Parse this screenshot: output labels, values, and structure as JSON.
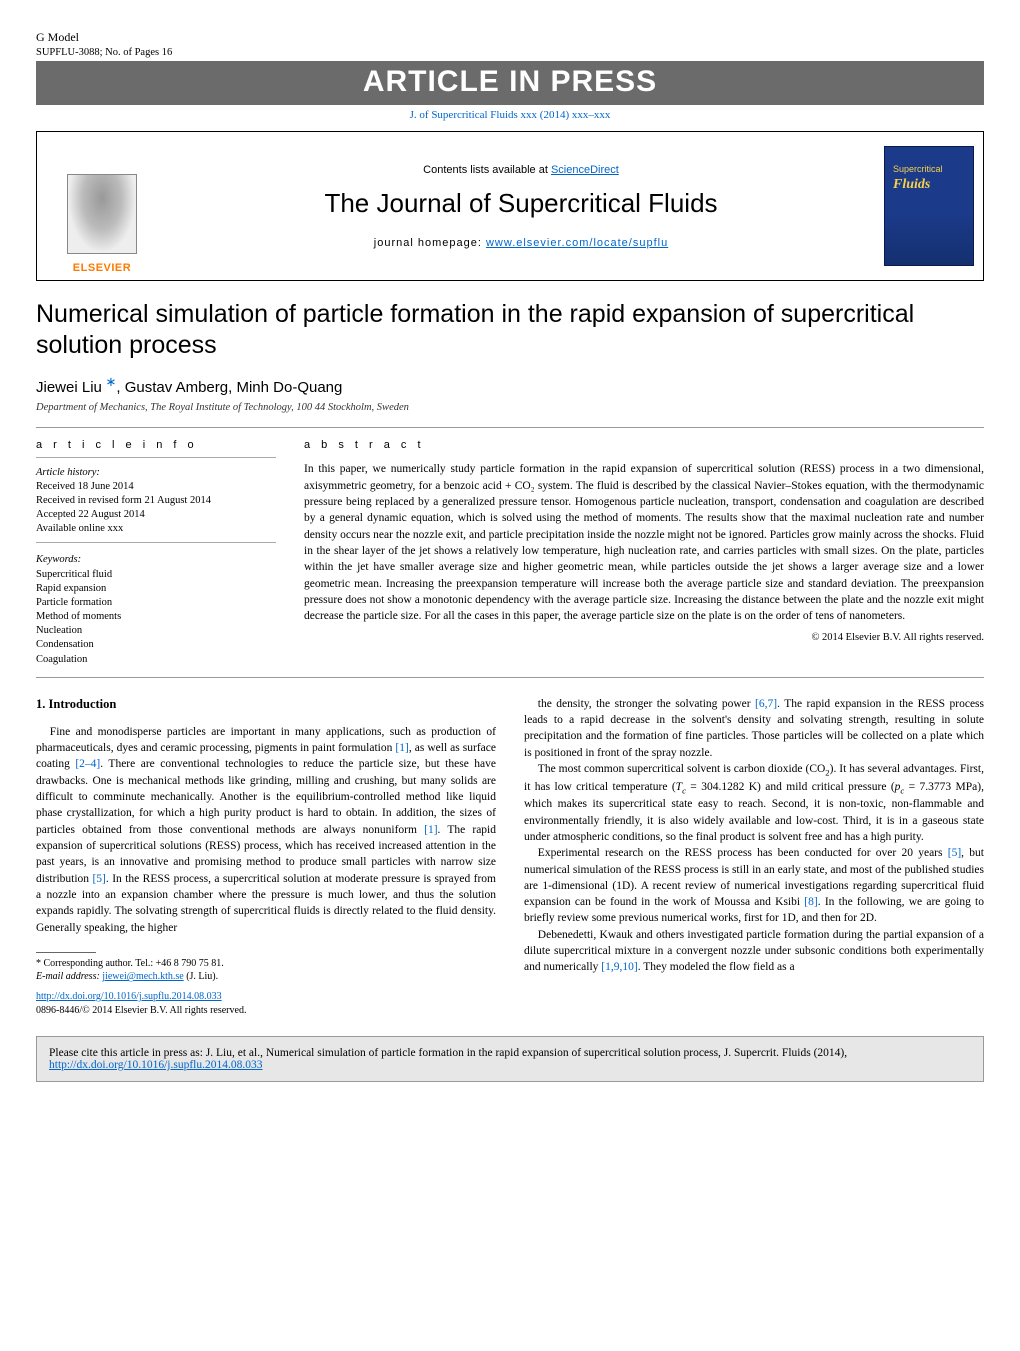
{
  "gmodel": {
    "label": "G Model",
    "ref": "SUPFLU-3088;   No. of Pages 16"
  },
  "aip_banner": "ARTICLE IN PRESS",
  "top_doi_link": "J. of Supercritical Fluids xxx (2014) xxx–xxx",
  "jheader": {
    "contents_prefix": "Contents lists available at ",
    "contents_link": "ScienceDirect",
    "journal_title": "The Journal of Supercritical Fluids",
    "homepage_label": "journal homepage: ",
    "homepage_url": "www.elsevier.com/locate/supflu",
    "elsevier": "ELSEVIER",
    "cover_line1": "Supercritical",
    "cover_line2": "Fluids"
  },
  "article": {
    "title": "Numerical simulation of particle formation in the rapid expansion of supercritical solution process",
    "authors_html": "Jiewei Liu <span class='corr'>*</span>, Gustav Amberg, Minh Do-Quang",
    "affiliation": "Department of Mechanics, The Royal Institute of Technology, 100 44 Stockholm, Sweden"
  },
  "info": {
    "heading": "a r t i c l e   i n f o",
    "history_label": "Article history:",
    "received": "Received 18 June 2014",
    "revised": "Received in revised form 21 August 2014",
    "accepted": "Accepted 22 August 2014",
    "online": "Available online xxx",
    "keywords_label": "Keywords:",
    "keywords": [
      "Supercritical fluid",
      "Rapid expansion",
      "Particle formation",
      "Method of moments",
      "Nucleation",
      "Condensation",
      "Coagulation"
    ]
  },
  "abstract": {
    "heading": "a b s t r a c t",
    "text": "In this paper, we numerically study particle formation in the rapid expansion of supercritical solution (RESS) process in a two dimensional, axisymmetric geometry, for a benzoic acid + CO₂ system. The fluid is described by the classical Navier–Stokes equation, with the thermodynamic pressure being replaced by a generalized pressure tensor. Homogenous particle nucleation, transport, condensation and coagulation are described by a general dynamic equation, which is solved using the method of moments. The results show that the maximal nucleation rate and number density occurs near the nozzle exit, and particle precipitation inside the nozzle might not be ignored. Particles grow mainly across the shocks. Fluid in the shear layer of the jet shows a relatively low temperature, high nucleation rate, and carries particles with small sizes. On the plate, particles within the jet have smaller average size and higher geometric mean, while particles outside the jet shows a larger average size and a lower geometric mean. Increasing the preexpansion temperature will increase both the average particle size and standard deviation. The preexpansion pressure does not show a monotonic dependency with the average particle size. Increasing the distance between the plate and the nozzle exit might decrease the particle size. For all the cases in this paper, the average particle size on the plate is on the order of tens of nanometers.",
    "copyright": "© 2014 Elsevier B.V. All rights reserved."
  },
  "body": {
    "section_heading": "1.  Introduction",
    "col1_p1": "Fine and monodisperse particles are important in many applications, such as production of pharmaceuticals, dyes and ceramic processing, pigments in paint formulation [1], as well as surface coating [2–4]. There are conventional technologies to reduce the particle size, but these have drawbacks. One is mechanical methods like grinding, milling and crushing, but many solids are difficult to comminute mechanically. Another is the equilibrium-controlled method like liquid phase crystallization, for which a high purity product is hard to obtain. In addition, the sizes of particles obtained from those conventional methods are always nonuniform [1]. The rapid expansion of supercritical solutions (RESS) process, which has received increased attention in the past years, is an innovative and promising method to produce small particles with narrow size distribution [5]. In the RESS process, a supercritical solution at moderate pressure is sprayed from a nozzle into an expansion chamber where the pressure is much lower, and thus the solution expands rapidly. The solvating strength of supercritical fluids is directly related to the fluid density. Generally speaking, the higher",
    "col2_p1": "the density, the stronger the solvating power [6,7]. The rapid expansion in the RESS process leads to a rapid decrease in the solvent's density and solvating strength, resulting in solute precipitation and the formation of fine particles. Those particles will be collected on a plate which is positioned in front of the spray nozzle.",
    "col2_p2": "The most common supercritical solvent is carbon dioxide (CO₂). It has several advantages. First, it has low critical temperature (Tc = 304.1282 K) and mild critical pressure (pc = 7.3773 MPa), which makes its supercritical state easy to reach. Second, it is non-toxic, non-flammable and environmentally friendly, it is also widely available and low-cost. Third, it is in a gaseous state under atmospheric conditions, so the final product is solvent free and has a high purity.",
    "col2_p3": "Experimental research on the RESS process has been conducted for over 20 years [5], but numerical simulation of the RESS process is still in an early state, and most of the published studies are 1-dimensional (1D). A recent review of numerical investigations regarding supercritical fluid expansion can be found in the work of Moussa and Ksibi [8]. In the following, we are going to briefly review some previous numerical works, first for 1D, and then for 2D.",
    "col2_p4": "Debenedetti, Kwauk and others investigated particle formation during the partial expansion of a dilute supercritical mixture in a convergent nozzle under subsonic conditions both experimentally and numerically [1,9,10]. They modeled the flow field as a",
    "refs": {
      "r1": "[1]",
      "r24": "[2–4]",
      "r1b": "[1]",
      "r5": "[5]",
      "r67": "[6,7]",
      "r5b": "[5]",
      "r8": "[8]",
      "r1910": "[1,9,10]"
    }
  },
  "footnote": {
    "corr_line": "* Corresponding author. Tel.: +46 8 790 75 81.",
    "email_label": "E-mail address: ",
    "email": "jiewei@mech.kth.se",
    "email_paren": " (J. Liu).",
    "doi_url": "http://dx.doi.org/10.1016/j.supflu.2014.08.033",
    "issn_line": "0896-8446/© 2014 Elsevier B.V. All rights reserved."
  },
  "citebox": {
    "text_prefix": "Please cite this article in press as: J. Liu, et al., Numerical simulation of particle formation in the rapid expansion of supercritical solution process, J. Supercrit. Fluids (2014), ",
    "url": "http://dx.doi.org/10.1016/j.supflu.2014.08.033"
  },
  "colors": {
    "link": "#0066cc",
    "banner_bg": "#6b6b6b",
    "elsevier_orange": "#ff7a00",
    "cover_bg": "#1b3a8a",
    "cover_text": "#f7d14a",
    "cite_bg": "#e7e7e7",
    "rule": "#999999"
  }
}
